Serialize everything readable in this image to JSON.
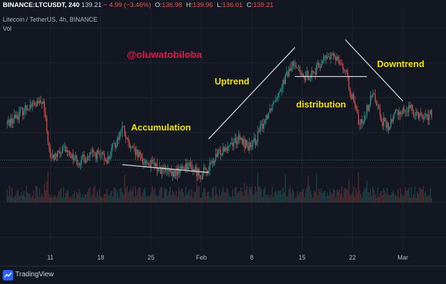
{
  "header": {
    "symbol": "BINANCE:LTCUSDT, 240",
    "last": "139.21",
    "change": "− 4.99 (−3.46%)",
    "o_label": "O:",
    "o_value": "136.98",
    "h_label": "H:",
    "h_value": "139.96",
    "l_label": "L:",
    "l_value": "136.01",
    "c_label": "C:",
    "c_value": "139.21",
    "subtitle": "Litecoin / TetherUS, 4h, BINANCE",
    "volume_label": "Vol"
  },
  "footer": {
    "brand": "TradingView",
    "logo_icon": "tradingview-logo-icon"
  },
  "colors": {
    "background": "#131722",
    "up": "#26a69a",
    "down": "#ef5350",
    "annotation_text": "#f4e30a",
    "watermark": "#e8174b",
    "trendline": "#d8d8d8",
    "grid": "#1f2430",
    "axis_text": "#b2b5be"
  },
  "chart_data": {
    "type": "candlestick",
    "title": "Litecoin / TetherUS, 4h, BINANCE",
    "timeframe": "4h",
    "x_tick_labels": [
      "11",
      "18",
      "25",
      "Feb",
      "8",
      "15",
      "22",
      "Mar"
    ],
    "y_axis": {
      "shown": false,
      "approx_range": [
        95,
        245
      ]
    },
    "last_price": 139.21,
    "watermark": "@oluwatobiloba",
    "annotations": [
      {
        "label": "Accumulation",
        "near": "11 Jan – 2 Feb consolidation"
      },
      {
        "label": "Uptrend",
        "near": "2 Feb – 14 Feb rally"
      },
      {
        "label": "distribution",
        "near": "14 Feb – 20 Feb top"
      },
      {
        "label": "Downtrend",
        "near": "20 Feb – 27 Feb decline"
      }
    ],
    "trend_lines": [
      {
        "name": "accumulation-line",
        "from": [
          "2021-01-21",
          135
        ],
        "to": [
          "2021-02-02",
          128
        ]
      },
      {
        "name": "uptrend-line",
        "from": [
          "2021-02-02",
          158
        ],
        "to": [
          "2021-02-14",
          240
        ]
      },
      {
        "name": "distribution-line",
        "from": [
          "2021-02-14",
          214
        ],
        "to": [
          "2021-02-24",
          214
        ]
      },
      {
        "name": "downtrend-line",
        "from": [
          "2021-02-21",
          247
        ],
        "to": [
          "2021-03-01",
          192
        ]
      }
    ],
    "price_path": [
      {
        "x": "2021-01-05",
        "y": 172
      },
      {
        "x": "2021-01-08",
        "y": 188
      },
      {
        "x": "2021-01-10",
        "y": 190
      },
      {
        "x": "2021-01-11",
        "y": 140
      },
      {
        "x": "2021-01-13",
        "y": 148
      },
      {
        "x": "2021-01-15",
        "y": 138
      },
      {
        "x": "2021-01-17",
        "y": 145
      },
      {
        "x": "2021-01-19",
        "y": 140
      },
      {
        "x": "2021-01-21",
        "y": 168
      },
      {
        "x": "2021-01-22",
        "y": 150
      },
      {
        "x": "2021-01-24",
        "y": 138
      },
      {
        "x": "2021-01-26",
        "y": 132
      },
      {
        "x": "2021-01-28",
        "y": 126
      },
      {
        "x": "2021-01-30",
        "y": 135
      },
      {
        "x": "2021-02-01",
        "y": 126
      },
      {
        "x": "2021-02-02",
        "y": 132
      },
      {
        "x": "2021-02-04",
        "y": 150
      },
      {
        "x": "2021-02-06",
        "y": 158
      },
      {
        "x": "2021-02-08",
        "y": 150
      },
      {
        "x": "2021-02-10",
        "y": 178
      },
      {
        "x": "2021-02-12",
        "y": 205
      },
      {
        "x": "2021-02-14",
        "y": 228
      },
      {
        "x": "2021-02-15",
        "y": 212
      },
      {
        "x": "2021-02-17",
        "y": 220
      },
      {
        "x": "2021-02-18",
        "y": 230
      },
      {
        "x": "2021-02-20",
        "y": 232
      },
      {
        "x": "2021-02-21",
        "y": 218
      },
      {
        "x": "2021-02-23",
        "y": 170
      },
      {
        "x": "2021-02-24",
        "y": 185
      },
      {
        "x": "2021-02-25",
        "y": 200
      },
      {
        "x": "2021-02-26",
        "y": 175
      },
      {
        "x": "2021-02-27",
        "y": 168
      },
      {
        "x": "2021-02-28",
        "y": 182
      },
      {
        "x": "2021-03-02",
        "y": 185
      },
      {
        "x": "2021-03-04",
        "y": 178
      },
      {
        "x": "2021-03-05",
        "y": 180
      }
    ]
  }
}
